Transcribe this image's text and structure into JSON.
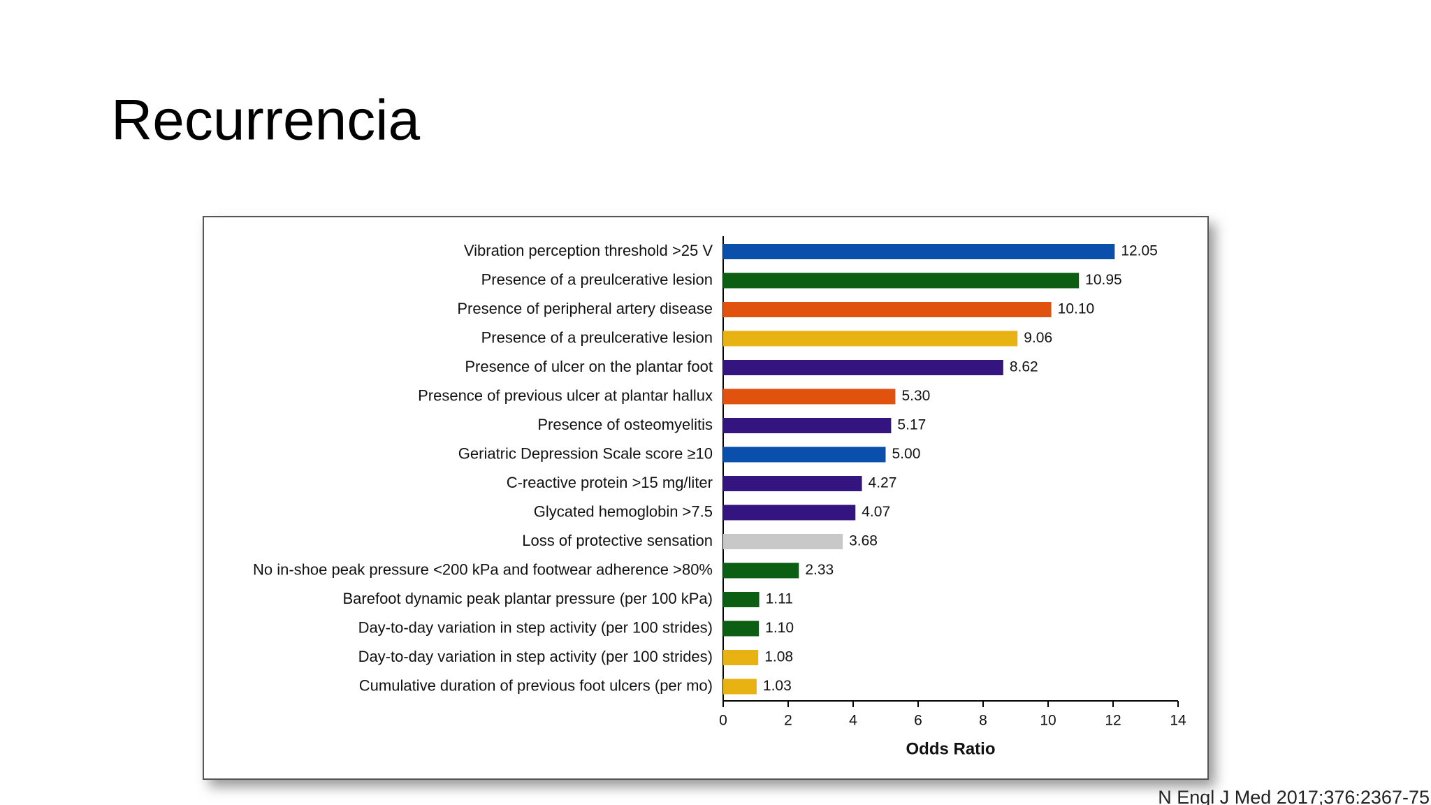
{
  "title": "Recurrencia",
  "citation": "N Engl J Med 2017;376:2367-75",
  "chart_data": {
    "type": "bar",
    "orientation": "horizontal",
    "categories": [
      "Vibration perception threshold >25 V",
      "Presence of a preulcerative lesion",
      "Presence of peripheral artery disease",
      "Presence of a preulcerative lesion",
      "Presence of ulcer on the plantar foot",
      "Presence of previous ulcer at plantar hallux",
      "Presence of osteomyelitis",
      "Geriatric Depression Scale score ≥10",
      "C-reactive protein >15 mg/liter",
      "Glycated hemoglobin >7.5",
      "Loss of protective sensation",
      "No in-shoe peak pressure <200 kPa and footwear adherence >80%",
      "Barefoot dynamic peak plantar pressure (per 100 kPa)",
      "Day-to-day variation in step activity (per 100 strides)",
      "Day-to-day variation in step activity (per 100 strides)",
      "Cumulative duration of previous foot ulcers (per mo)"
    ],
    "values": [
      12.05,
      10.95,
      10.1,
      9.06,
      8.62,
      5.3,
      5.17,
      5,
      4.27,
      4.07,
      3.68,
      2.33,
      1.11,
      1.1,
      1.08,
      1.03
    ],
    "value_labels": [
      "12.05",
      "10.95",
      "10.10",
      "9.06",
      "8.62",
      "5.30",
      "5.17",
      "5.00",
      "4.27",
      "4.07",
      "3.68",
      "2.33",
      "1.11",
      "1.10",
      "1.08",
      "1.03"
    ],
    "colors": [
      "#0b4fad",
      "#0b5e12",
      "#e0520e",
      "#e8b212",
      "#34157f",
      "#e0520e",
      "#34157f",
      "#0b4fad",
      "#34157f",
      "#34157f",
      "#c8c8c8",
      "#0b5e12",
      "#0b5e12",
      "#0b5e12",
      "#e8b212",
      "#e8b212"
    ],
    "xlim": [
      0,
      14
    ],
    "xticks": [
      0,
      2,
      4,
      6,
      8,
      10,
      12,
      14
    ],
    "xlabel": "Odds Ratio"
  }
}
